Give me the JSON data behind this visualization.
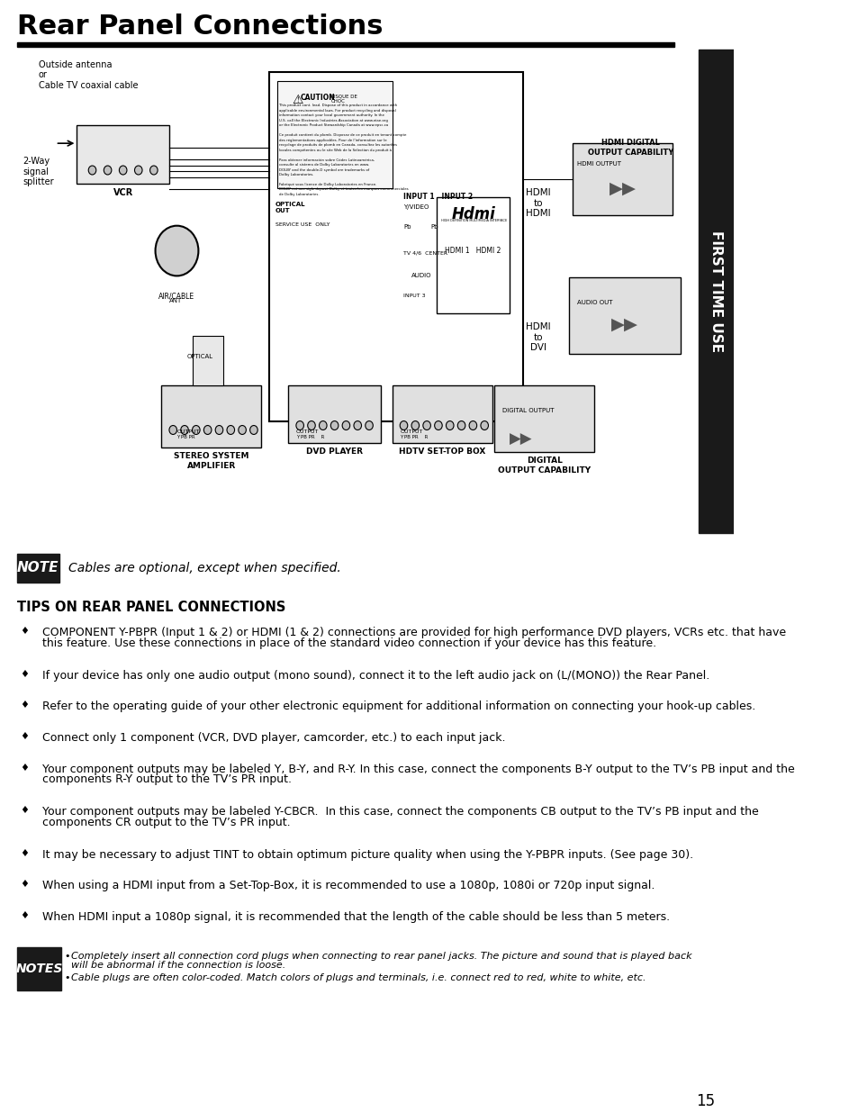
{
  "title": "Rear Panel Connections",
  "sidebar_text": "FIRST TIME USE",
  "page_number": "15",
  "note_label": "NOTE",
  "note_text": "Cables are optional, except when specified.",
  "tips_header": "TIPS ON REAR PANEL CONNECTIONS",
  "bullet_char": "♦",
  "bullets": [
    "COMPONENT Y-PBPR (Input 1 & 2) or HDMI (1 & 2) connections are provided for high performance DVD players, VCRs etc. that have\nthis feature. Use these connections in place of the standard video connection if your device has this feature.",
    "If your device has only one audio output (mono sound), connect it to the left audio jack on (L/(MONO)) the Rear Panel.",
    "Refer to the operating guide of your other electronic equipment for additional information on connecting your hook-up cables.",
    "Connect only 1 component (VCR, DVD player, camcorder, etc.) to each input jack.",
    "Your component outputs may be labeled Y, B-Y, and R-Y. In this case, connect the components B-Y output to the TV’s PB input and the\ncomponents R-Y output to the TV’s PR input.",
    "Your component outputs may be labeled Y-CBCR.  In this case, connect the components CB output to the TV’s PB input and the\ncomponents CR output to the TV’s PR input.",
    "It may be necessary to adjust TINT to obtain optimum picture quality when using the Y-PBPR inputs. (See page 30).",
    "When using a HDMI input from a Set-Top-Box, it is recommended to use a 1080p, 1080i or 720p input signal.",
    "When HDMI input a 1080p signal, it is recommended that the length of the cable should be less than 5 meters."
  ],
  "notes_label": "NOTES",
  "notes_bullets": [
    "Completely insert all connection cord plugs when connecting to rear panel jacks. The picture and sound that is played back\nwill be abnormal if the connection is loose.",
    "Cable plugs are often color-coded. Match colors of plugs and terminals, i.e. connect red to red, white to white, etc."
  ],
  "diagram_labels": {
    "outside_antenna": "Outside antenna\nor\nCable TV coaxial cable",
    "two_way": "2-Way\nsignal\nsplitter",
    "vcr": "VCR",
    "stereo_system": "STEREO SYSTEM\nAMPLIFIER",
    "dvd_player": "DVD PLAYER",
    "hdtv_set_top": "HDTV SET-TOP BOX",
    "digital_output": "DIGITAL\nOUTPUT CAPABILITY",
    "hdmi_digital": "HDMI DIGITAL\nOUTPUT CAPABILITY",
    "hdmi_to_hdmi": "HDMI\nto\nHDMI",
    "hdmi_to_dvi": "HDMI\nto\nDVI"
  },
  "bg_color": "#ffffff",
  "title_color": "#000000",
  "sidebar_bg": "#1a1a1a",
  "sidebar_text_color": "#ffffff",
  "note_bg": "#1a1a1a",
  "note_text_color": "#ffffff",
  "diagram_line_color": "#333333"
}
